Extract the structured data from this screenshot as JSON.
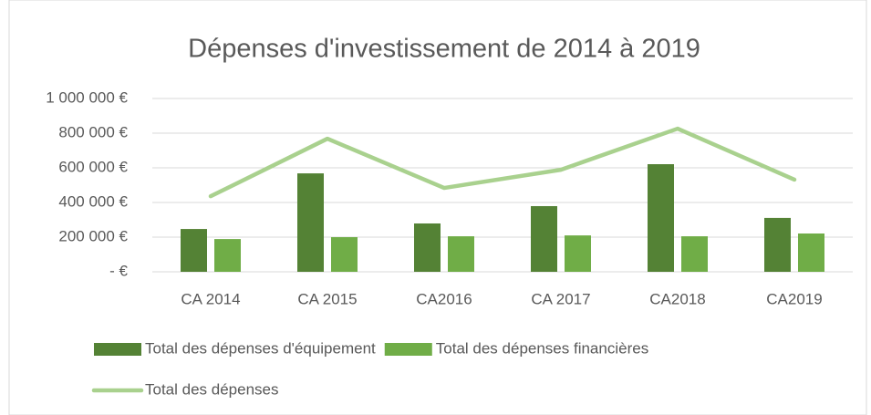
{
  "chart_data": {
    "type": "bar",
    "title": "Dépenses d'investissement de 2014 à 2019",
    "categories": [
      "CA 2014",
      "CA 2015",
      "CA2016",
      "CA 2017",
      "CA2018",
      "CA2019"
    ],
    "series": [
      {
        "name": "Total des dépenses d'équipement",
        "color": "#548235",
        "values": [
          247000,
          568000,
          279000,
          379000,
          621000,
          311000
        ]
      },
      {
        "name": "Total des dépenses financières",
        "color": "#70ad47",
        "values": [
          189000,
          200000,
          205000,
          210000,
          205000,
          221000
        ]
      },
      {
        "name": "Total des dépenses",
        "color": "#a9d18e",
        "type": "line",
        "values": [
          436000,
          768000,
          484000,
          589000,
          826000,
          532000
        ]
      }
    ],
    "ylim": [
      0,
      1000000
    ],
    "yticks": [
      {
        "value": 0,
        "label": "-   €"
      },
      {
        "value": 200000,
        "label": "200 000 €"
      },
      {
        "value": 400000,
        "label": "400 000 €"
      },
      {
        "value": 600000,
        "label": "600 000 €"
      },
      {
        "value": 800000,
        "label": "800 000 €"
      },
      {
        "value": 1000000,
        "label": "1 000 000 €"
      }
    ],
    "grid": true
  }
}
